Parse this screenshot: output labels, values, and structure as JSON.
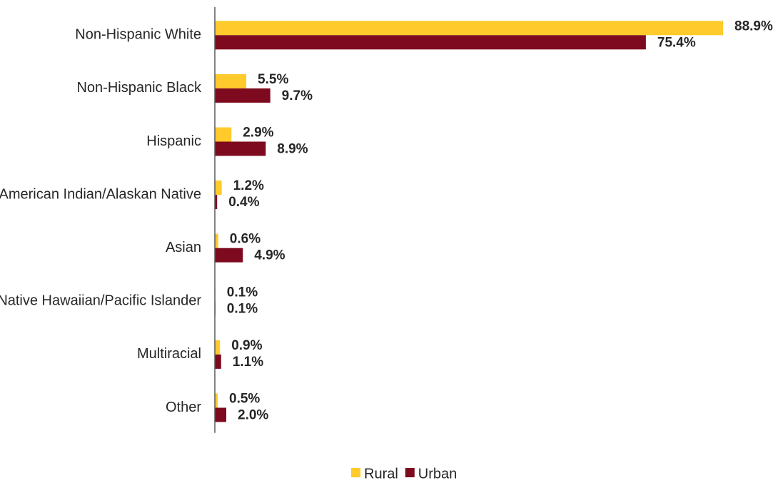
{
  "chart_data": {
    "type": "bar",
    "orientation": "horizontal",
    "categories": [
      "Non-Hispanic White",
      "Non-Hispanic Black",
      "Hispanic",
      "American Indian/Alaskan Native",
      "Asian",
      "Native Hawaiian/Pacific Islander",
      "Multiracial",
      "Other"
    ],
    "series": [
      {
        "name": "Rural",
        "color": "#FFCA2B",
        "values": [
          88.9,
          5.5,
          2.9,
          1.2,
          0.6,
          0.1,
          0.9,
          0.5
        ],
        "labels": [
          "88.9%",
          "5.5%",
          "2.9%",
          "1.2%",
          "0.6%",
          "0.1%",
          "0.9%",
          "0.5%"
        ]
      },
      {
        "name": "Urban",
        "color": "#7D0A1E",
        "values": [
          75.4,
          9.7,
          8.9,
          0.4,
          4.9,
          0.1,
          1.1,
          2.0
        ],
        "labels": [
          "75.4%",
          "9.7%",
          "8.9%",
          "0.4%",
          "4.9%",
          "0.1%",
          "1.1%",
          "2.0%"
        ]
      }
    ],
    "xlim": [
      0,
      88.9
    ],
    "title": "",
    "xlabel": "",
    "ylabel": "",
    "grid": false,
    "legend_position": "bottom-center"
  }
}
